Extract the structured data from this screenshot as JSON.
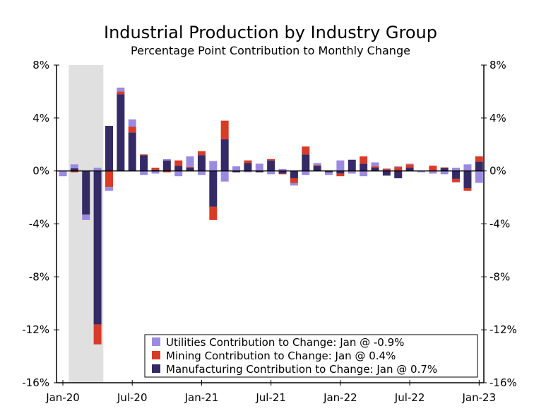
{
  "chart_data": {
    "type": "bar",
    "stacked": true,
    "title": "Industrial Production by Industry Group",
    "subtitle": "Percentage Point Contribution to Monthly Change",
    "xlabel": "",
    "ylabel": "",
    "ylim": [
      -16,
      8
    ],
    "y_ticks": [
      "8%",
      "4%",
      "0%",
      "-4%",
      "-8%",
      "-12%",
      "-16%"
    ],
    "y_tick_values": [
      8,
      4,
      0,
      -4,
      -8,
      -12,
      -16
    ],
    "x_tick_labels": [
      "Jan-20",
      "Jul-20",
      "Jan-21",
      "Jul-21",
      "Jan-22",
      "Jul-22",
      "Jan-23"
    ],
    "x_tick_month_index": [
      0,
      6,
      12,
      18,
      24,
      30,
      36
    ],
    "grid": false,
    "dual_y_axis": true,
    "legend_position": "bottom-right",
    "shaded_period": {
      "start": "Feb-20",
      "end": "Apr-20",
      "color": "#e0e0e0"
    },
    "categories": [
      "Jan-20",
      "Feb-20",
      "Mar-20",
      "Apr-20",
      "May-20",
      "Jun-20",
      "Jul-20",
      "Aug-20",
      "Sep-20",
      "Oct-20",
      "Nov-20",
      "Dec-20",
      "Jan-21",
      "Feb-21",
      "Mar-21",
      "Apr-21",
      "May-21",
      "Jun-21",
      "Jul-21",
      "Aug-21",
      "Sep-21",
      "Oct-21",
      "Nov-21",
      "Dec-21",
      "Jan-22",
      "Feb-22",
      "Mar-22",
      "Apr-22",
      "May-22",
      "Jun-22",
      "Jul-22",
      "Aug-22",
      "Sep-22",
      "Oct-22",
      "Nov-22",
      "Dec-22",
      "Jan-23"
    ],
    "series": [
      {
        "name": "Manufacturing Contribution to Change: Jan @ 0.7%",
        "color": "#342a66",
        "values": [
          0.0,
          0.2,
          -3.3,
          -11.6,
          3.4,
          5.8,
          2.9,
          1.2,
          0.1,
          0.8,
          0.4,
          0.25,
          1.2,
          -2.7,
          2.4,
          -0.1,
          0.6,
          -0.1,
          0.8,
          -0.2,
          -0.55,
          1.25,
          0.4,
          -0.1,
          -0.2,
          0.85,
          0.55,
          0.25,
          -0.35,
          -0.55,
          0.25,
          0.0,
          0.0,
          0.25,
          -0.6,
          -1.3,
          0.7
        ]
      },
      {
        "name": "Mining Contribution to Change: Jan @ 0.4%",
        "color": "#d93b26",
        "values": [
          0.0,
          -0.1,
          0.0,
          -1.5,
          -1.2,
          0.2,
          0.45,
          0.05,
          0.15,
          -0.1,
          0.4,
          0.05,
          0.3,
          -1.0,
          1.4,
          0.05,
          0.2,
          0.05,
          0.1,
          -0.05,
          -0.35,
          0.6,
          0.05,
          0.05,
          -0.2,
          -0.05,
          0.55,
          0.1,
          0.15,
          0.3,
          0.25,
          0.0,
          0.4,
          0.02,
          -0.25,
          -0.2,
          0.4
        ]
      },
      {
        "name": "Utilities Contribution to Change: Jan @ -0.9%",
        "color": "#9b8be0",
        "values": [
          -0.4,
          0.3,
          -0.4,
          0.25,
          -0.3,
          0.3,
          0.55,
          -0.3,
          -0.2,
          0.1,
          -0.4,
          0.8,
          -0.3,
          0.75,
          -0.8,
          0.3,
          -0.1,
          0.5,
          -0.25,
          0.15,
          -0.2,
          -0.3,
          0.15,
          -0.2,
          0.8,
          -0.15,
          -0.4,
          0.3,
          0.05,
          0.05,
          0.05,
          -0.1,
          -0.2,
          -0.25,
          0.25,
          0.5,
          -0.9
        ]
      }
    ]
  }
}
